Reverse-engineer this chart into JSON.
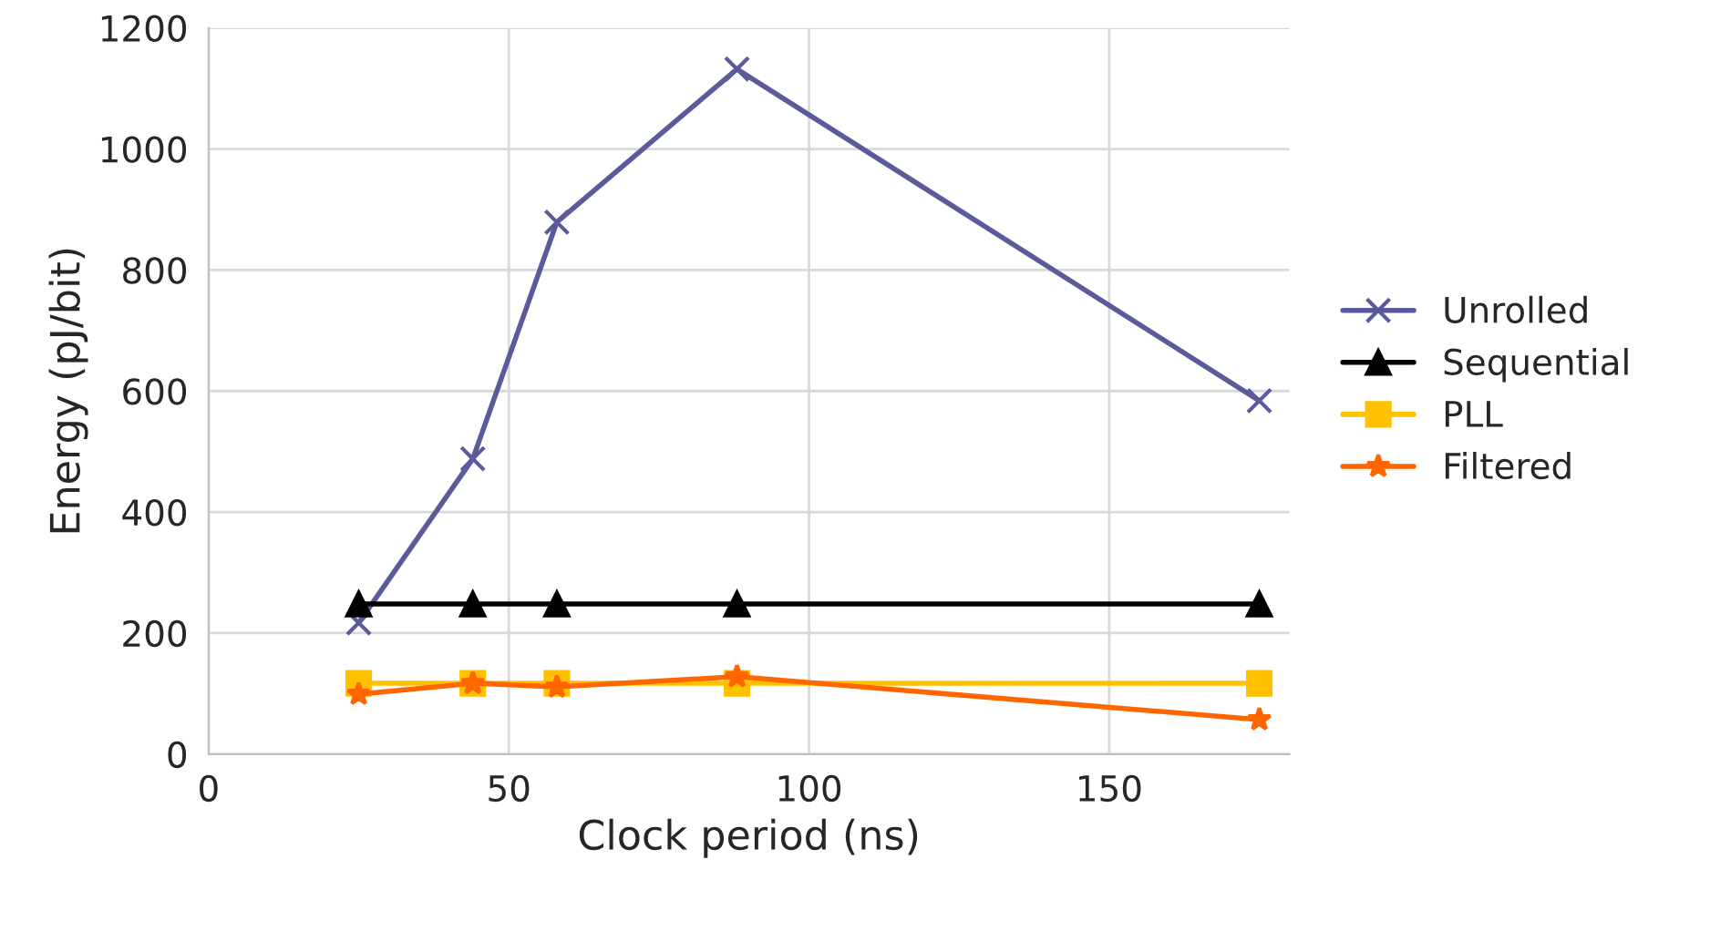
{
  "chart_data": {
    "type": "line",
    "xlabel": "Clock period (ns)",
    "ylabel": "Energy (pJ/bit)",
    "x": [
      25,
      44,
      58,
      88,
      175
    ],
    "series": [
      {
        "name": "Unrolled",
        "color": "#5b5b9b",
        "marker": "cross",
        "values": [
          217,
          488,
          879,
          1132,
          584
        ]
      },
      {
        "name": "Sequential",
        "color": "#000000",
        "marker": "triangle",
        "values": [
          248,
          248,
          248,
          248,
          248
        ]
      },
      {
        "name": "PLL",
        "color": "#ffc000",
        "marker": "square",
        "values": [
          117,
          117,
          117,
          117,
          117
        ]
      },
      {
        "name": "Filtered",
        "color": "#ff6600",
        "marker": "star",
        "values": [
          99,
          117,
          111,
          128,
          57
        ]
      }
    ],
    "xlim": [
      0,
      180
    ],
    "xticks": [
      0,
      50,
      100,
      150
    ],
    "ylim": [
      0,
      1200
    ],
    "yticks": [
      0,
      200,
      400,
      600,
      800,
      1000,
      1200
    ],
    "grid": true,
    "legend": "right",
    "line_style": "solid"
  }
}
